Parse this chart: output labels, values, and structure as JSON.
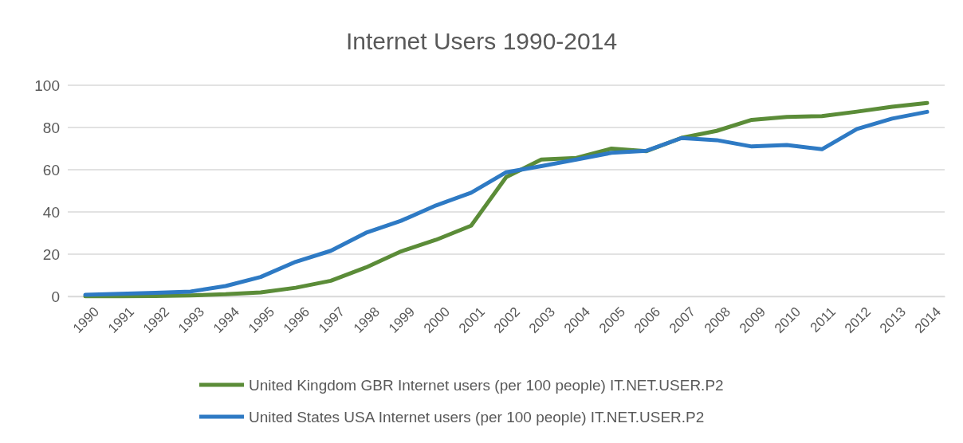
{
  "chart_data": {
    "type": "line",
    "title": "Internet Users 1990-2014",
    "categories": [
      "1990",
      "1991",
      "1992",
      "1993",
      "1994",
      "1995",
      "1996",
      "1997",
      "1998",
      "1999",
      "2000",
      "2001",
      "2002",
      "2003",
      "2004",
      "2005",
      "2006",
      "2007",
      "2008",
      "2009",
      "2010",
      "2011",
      "2012",
      "2013",
      "2014"
    ],
    "series": [
      {
        "name": "United Kingdom GBR Internet users (per 100 people) IT.NET.USER.P2",
        "color": "#5b8c38",
        "values": [
          0.1,
          0.1,
          0.2,
          0.5,
          1.0,
          1.9,
          4.1,
          7.4,
          13.7,
          21.3,
          26.8,
          33.5,
          56.5,
          64.8,
          65.6,
          70,
          68.8,
          75.1,
          78.4,
          83.6,
          85,
          85.4,
          87.5,
          89.8,
          91.6
        ]
      },
      {
        "name": "United States USA Internet users (per 100 people) IT.NET.USER.P2",
        "color": "#2e7ac4",
        "values": [
          0.8,
          1.2,
          1.7,
          2.3,
          4.9,
          9.2,
          16.4,
          21.6,
          30.1,
          35.8,
          43.1,
          49.1,
          58.8,
          61.7,
          64.8,
          68,
          69,
          75,
          74,
          71,
          71.7,
          69.7,
          79.3,
          84.2,
          87.4
        ]
      }
    ],
    "ylim": [
      0,
      100
    ],
    "yticks": [
      0,
      20,
      40,
      60,
      80,
      100
    ],
    "grid": "y",
    "legend": "bottom",
    "marker": "none",
    "line_style": "solid"
  }
}
